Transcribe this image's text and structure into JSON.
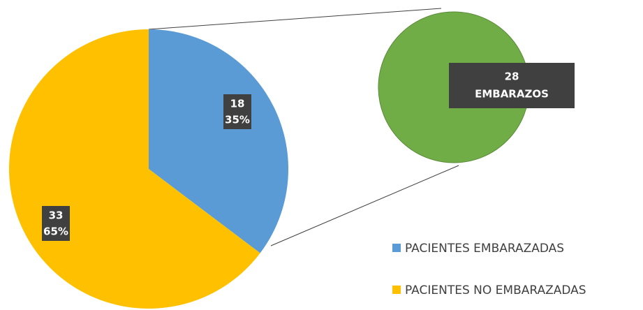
{
  "chart_data": {
    "type": "pie-of-pie",
    "categories": [
      "PACIENTES EMBARAZADAS",
      "PACIENTES NO EMBARAZADAS"
    ],
    "values": [
      18,
      33
    ],
    "percent_labels": [
      "35%",
      "65%"
    ],
    "colors": [
      "#5b9bd5",
      "#ffc000"
    ],
    "secondary": {
      "value": 28,
      "label": "EMBARAZOS",
      "color": "#70ad47"
    },
    "legend": "bottom-right"
  }
}
